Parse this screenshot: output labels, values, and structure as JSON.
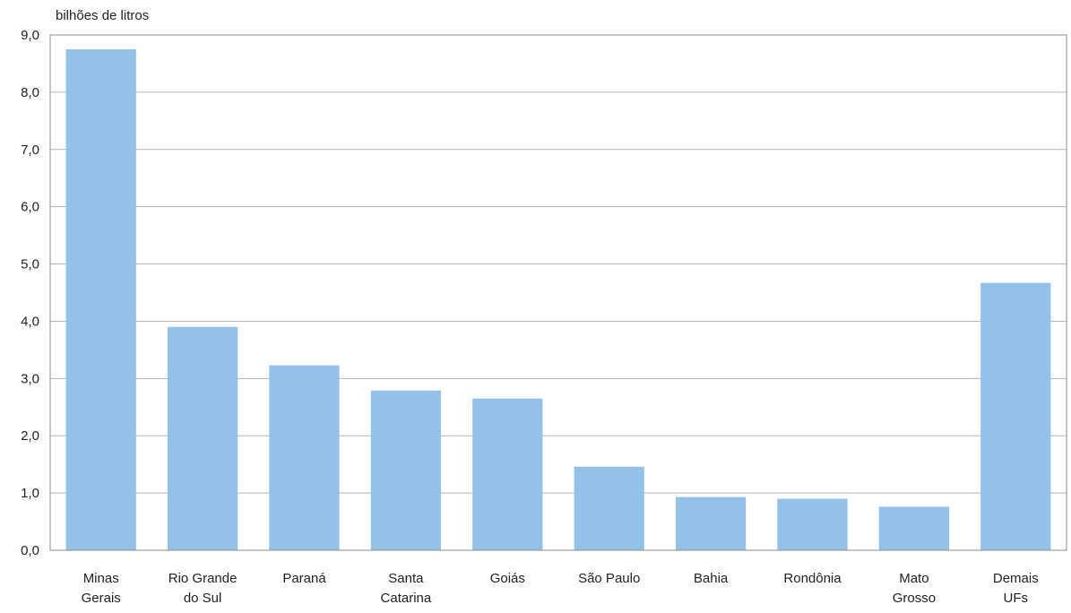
{
  "chart_data": {
    "type": "bar",
    "ylabel": "bilhões de litros",
    "categories": [
      [
        "Minas",
        "Gerais"
      ],
      [
        "Rio Grande",
        "do Sul"
      ],
      [
        "Paraná"
      ],
      [
        "Santa",
        "Catarina"
      ],
      [
        "Goiás"
      ],
      [
        "São Paulo"
      ],
      [
        "Bahia"
      ],
      [
        "Rondônia"
      ],
      [
        "Mato",
        "Grosso"
      ],
      [
        "Demais",
        "UFs"
      ]
    ],
    "values": [
      8.75,
      3.9,
      3.23,
      2.79,
      2.65,
      1.46,
      0.93,
      0.9,
      0.76,
      4.67
    ],
    "ylim": [
      0,
      9
    ],
    "yticks": [
      0,
      1,
      2,
      3,
      4,
      5,
      6,
      7,
      8,
      9
    ],
    "ytick_labels": [
      "0,0",
      "1,0",
      "2,0",
      "3,0",
      "4,0",
      "5,0",
      "6,0",
      "7,0",
      "8,0",
      "9,0"
    ],
    "grid": true,
    "bar_color": "#93c1e8",
    "grid_color": "#b3b3b3"
  }
}
